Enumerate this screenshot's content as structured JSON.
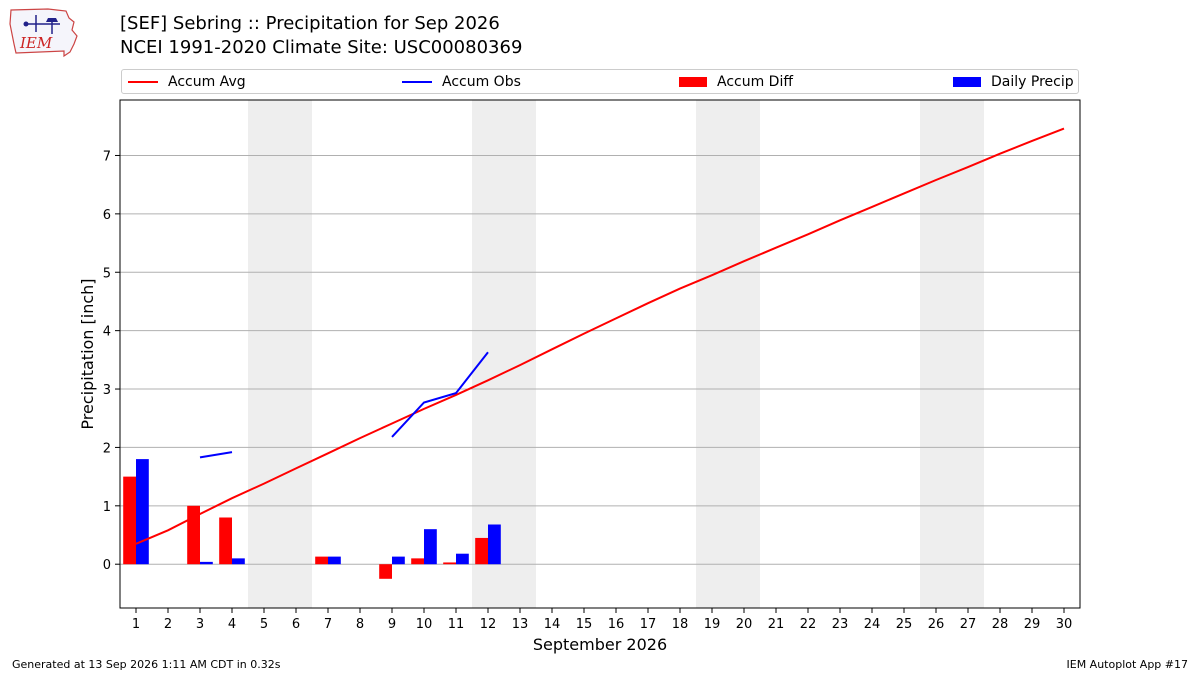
{
  "header": {
    "title_line1": "[SEF] Sebring :: Precipitation for Sep 2026",
    "title_line2": "NCEI 1991-2020 Climate Site: USC00080369"
  },
  "logo": {
    "text": "IEM",
    "icon": "iem-iowa-logo-icon"
  },
  "footer": {
    "left": "Generated at 13 Sep 2026 1:11 AM CDT in 0.32s",
    "right": "IEM Autoplot App #17"
  },
  "colors": {
    "avg": "#ff0000",
    "obs": "#0000ff",
    "diff": "#ff0000",
    "daily": "#0000ff",
    "weekend": "#eeeeee",
    "grid": "#b0b0b0"
  },
  "chart_data": {
    "type": "bar",
    "xlabel": "September 2026",
    "ylabel": "Precipitation [inch]",
    "xlim": [
      0.5,
      30.5
    ],
    "ylim": [
      -0.75,
      7.95
    ],
    "x_ticks": [
      1,
      2,
      3,
      4,
      5,
      6,
      7,
      8,
      9,
      10,
      11,
      12,
      13,
      14,
      15,
      16,
      17,
      18,
      19,
      20,
      21,
      22,
      23,
      24,
      25,
      26,
      27,
      28,
      29,
      30
    ],
    "y_ticks": [
      0,
      1,
      2,
      3,
      4,
      5,
      6,
      7
    ],
    "grid": "horizontal",
    "weekend_shading": [
      [
        5,
        6
      ],
      [
        12,
        13
      ],
      [
        19,
        20
      ],
      [
        26,
        27
      ]
    ],
    "legend": {
      "placement": "top",
      "entries": [
        "Accum Avg",
        "Accum Obs",
        "Accum Diff",
        "Daily Precip"
      ]
    },
    "series": [
      {
        "name": "Accum Avg",
        "kind": "line",
        "x": [
          1,
          2,
          3,
          4,
          5,
          6,
          7,
          8,
          9,
          10,
          11,
          12,
          13,
          14,
          15,
          16,
          17,
          18,
          19,
          20,
          21,
          22,
          23,
          24,
          25,
          26,
          27,
          28,
          29,
          30
        ],
        "values": [
          0.35,
          0.58,
          0.86,
          1.13,
          1.38,
          1.64,
          1.9,
          2.16,
          2.41,
          2.66,
          2.9,
          3.15,
          3.41,
          3.68,
          3.95,
          4.21,
          4.47,
          4.72,
          4.95,
          5.19,
          5.42,
          5.65,
          5.89,
          6.12,
          6.35,
          6.58,
          6.8,
          7.03,
          7.25,
          7.46
        ]
      },
      {
        "name": "Accum Obs",
        "kind": "line",
        "x": [
          1,
          2,
          3,
          4,
          5,
          6,
          7,
          8,
          9,
          10,
          11,
          12
        ],
        "values": [
          null,
          null,
          1.83,
          1.92,
          null,
          null,
          null,
          null,
          2.18,
          2.77,
          2.93,
          3.63
        ]
      },
      {
        "name": "Accum Diff",
        "kind": "bar",
        "x": [
          1,
          3,
          4,
          7,
          9,
          10,
          11,
          12
        ],
        "values": [
          1.5,
          1.0,
          0.8,
          0.13,
          -0.25,
          0.1,
          0.03,
          0.45
        ]
      },
      {
        "name": "Daily Precip",
        "kind": "bar",
        "x": [
          1,
          3,
          4,
          7,
          9,
          10,
          11,
          12
        ],
        "values": [
          1.8,
          0.04,
          0.1,
          0.13,
          0.13,
          0.6,
          0.18,
          0.68
        ]
      }
    ]
  }
}
